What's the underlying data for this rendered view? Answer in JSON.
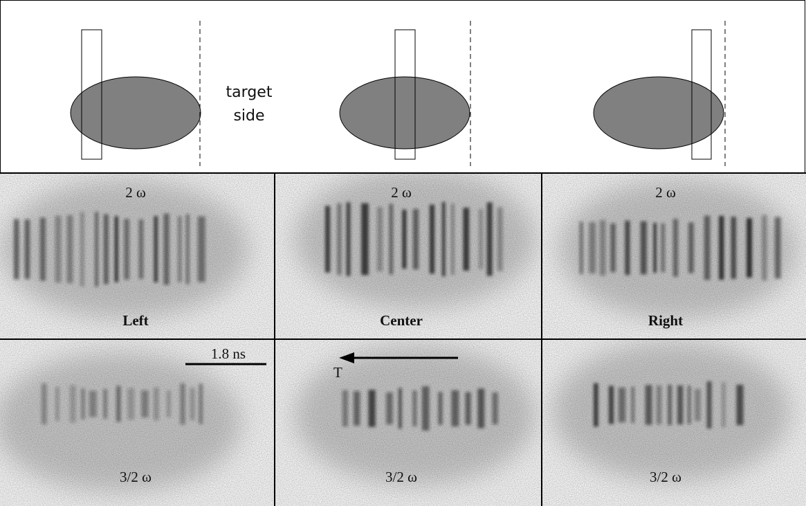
{
  "diagram": {
    "target_label": [
      "target",
      "side"
    ]
  },
  "panels": [
    {
      "top_label": "2 ω",
      "bottom_label": "Left"
    },
    {
      "top_label": "2 ω",
      "bottom_label": "Center"
    },
    {
      "top_label": "2 ω",
      "bottom_label": "Right"
    }
  ],
  "bottom_panels": [
    {
      "label": "3/2 ω"
    },
    {
      "label": "3/2 ω"
    },
    {
      "label": "3/2 ω"
    }
  ],
  "scale_bar": "1.8 ns",
  "arrow_label": "T"
}
